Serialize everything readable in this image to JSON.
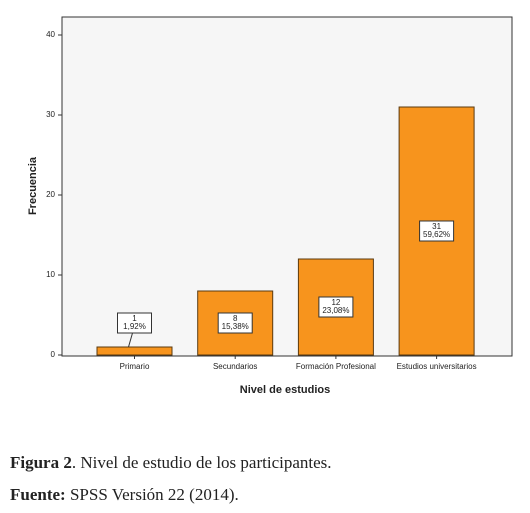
{
  "chart_data": {
    "type": "bar",
    "xlabel": "Nivel de estudios",
    "ylabel": "Frecuencia",
    "categories": [
      "Primario",
      "Secundarios",
      "Formación Profesional",
      "Estudios universitarios"
    ],
    "values": [
      1,
      8,
      12,
      31
    ],
    "percents": [
      1.92,
      15.38,
      23.08,
      59.62
    ],
    "percent_labels": [
      "1,92%",
      "15,38%",
      "23,08%",
      "59,62%"
    ],
    "color": "#f7941d",
    "ylim": [
      0,
      40
    ],
    "yticks": [
      0,
      10,
      20,
      30,
      40
    ]
  },
  "caption": {
    "figure_label": "Figura 2",
    "figure_text": ". Nivel de estudio de los participantes.",
    "source_label": "Fuente:",
    "source_text": " SPSS Versión 22 (2014)."
  }
}
